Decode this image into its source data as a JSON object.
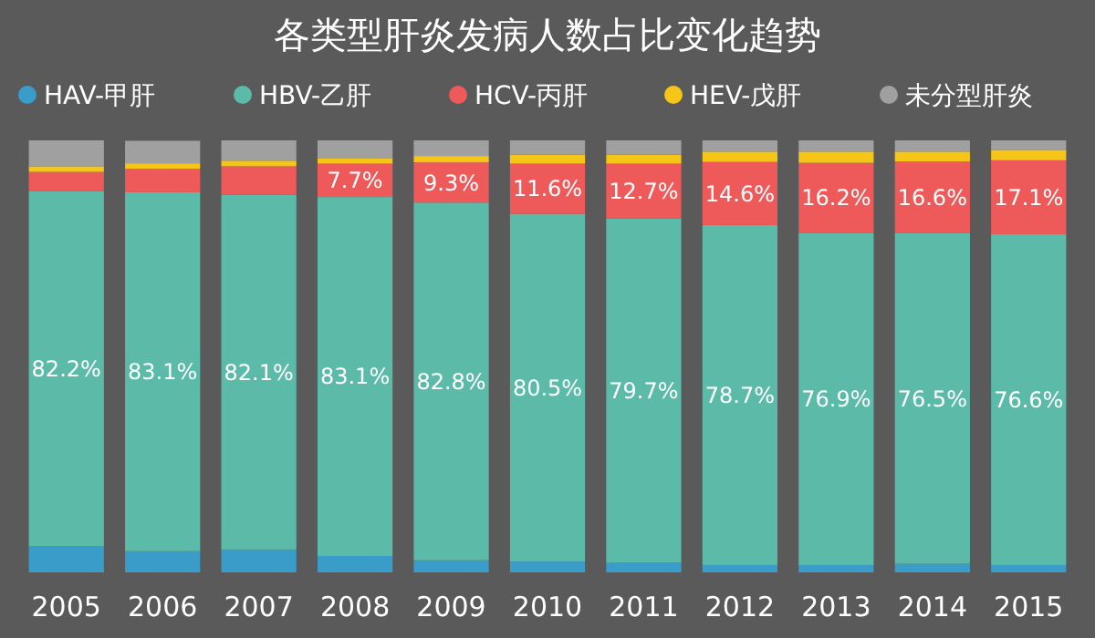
{
  "chart_data": {
    "type": "bar",
    "title": "各类型肝炎发病人数占比变化趋势",
    "stacked": true,
    "legend": "top",
    "tick_labels": "x",
    "ylim": [
      0,
      100
    ],
    "categories": [
      "2005",
      "2006",
      "2007",
      "2008",
      "2009",
      "2010",
      "2011",
      "2012",
      "2013",
      "2014",
      "2015"
    ],
    "series": [
      {
        "name": "HAV-甲肝",
        "color": "#3a9cc8",
        "values": [
          6.1,
          4.9,
          5.3,
          3.8,
          2.8,
          2.5,
          2.2,
          1.7,
          1.7,
          2.0,
          1.7
        ]
      },
      {
        "name": "HBV-乙肝",
        "color": "#5bbaa8",
        "values": [
          82.2,
          83.1,
          82.1,
          83.1,
          82.8,
          80.5,
          79.7,
          78.7,
          76.9,
          76.5,
          76.6
        ],
        "value_labels": [
          "82.2%",
          "83.1%",
          "82.1%",
          "83.1%",
          "82.8%",
          "80.5%",
          "79.7%",
          "78.7%",
          "76.9%",
          "76.5%",
          "76.6%"
        ]
      },
      {
        "name": "HCV-丙肝",
        "color": "#ee5a5a",
        "values": [
          4.4,
          5.4,
          6.6,
          7.7,
          9.3,
          11.6,
          12.7,
          14.6,
          16.2,
          16.6,
          17.1
        ],
        "value_labels": [
          null,
          null,
          null,
          "7.7%",
          "9.3%",
          "11.6%",
          "12.7%",
          "14.6%",
          "16.2%",
          "16.6%",
          "17.1%"
        ]
      },
      {
        "name": "HEV-戊肝",
        "color": "#f5c518",
        "values": [
          1.3,
          1.3,
          1.3,
          1.3,
          1.5,
          2.1,
          2.1,
          2.4,
          2.6,
          2.3,
          2.4
        ]
      },
      {
        "name": "未分型肝炎",
        "color": "#a0a0a0",
        "values": [
          6.0,
          5.2,
          4.7,
          4.1,
          3.6,
          3.3,
          3.3,
          2.6,
          2.6,
          2.6,
          2.2
        ]
      }
    ]
  }
}
